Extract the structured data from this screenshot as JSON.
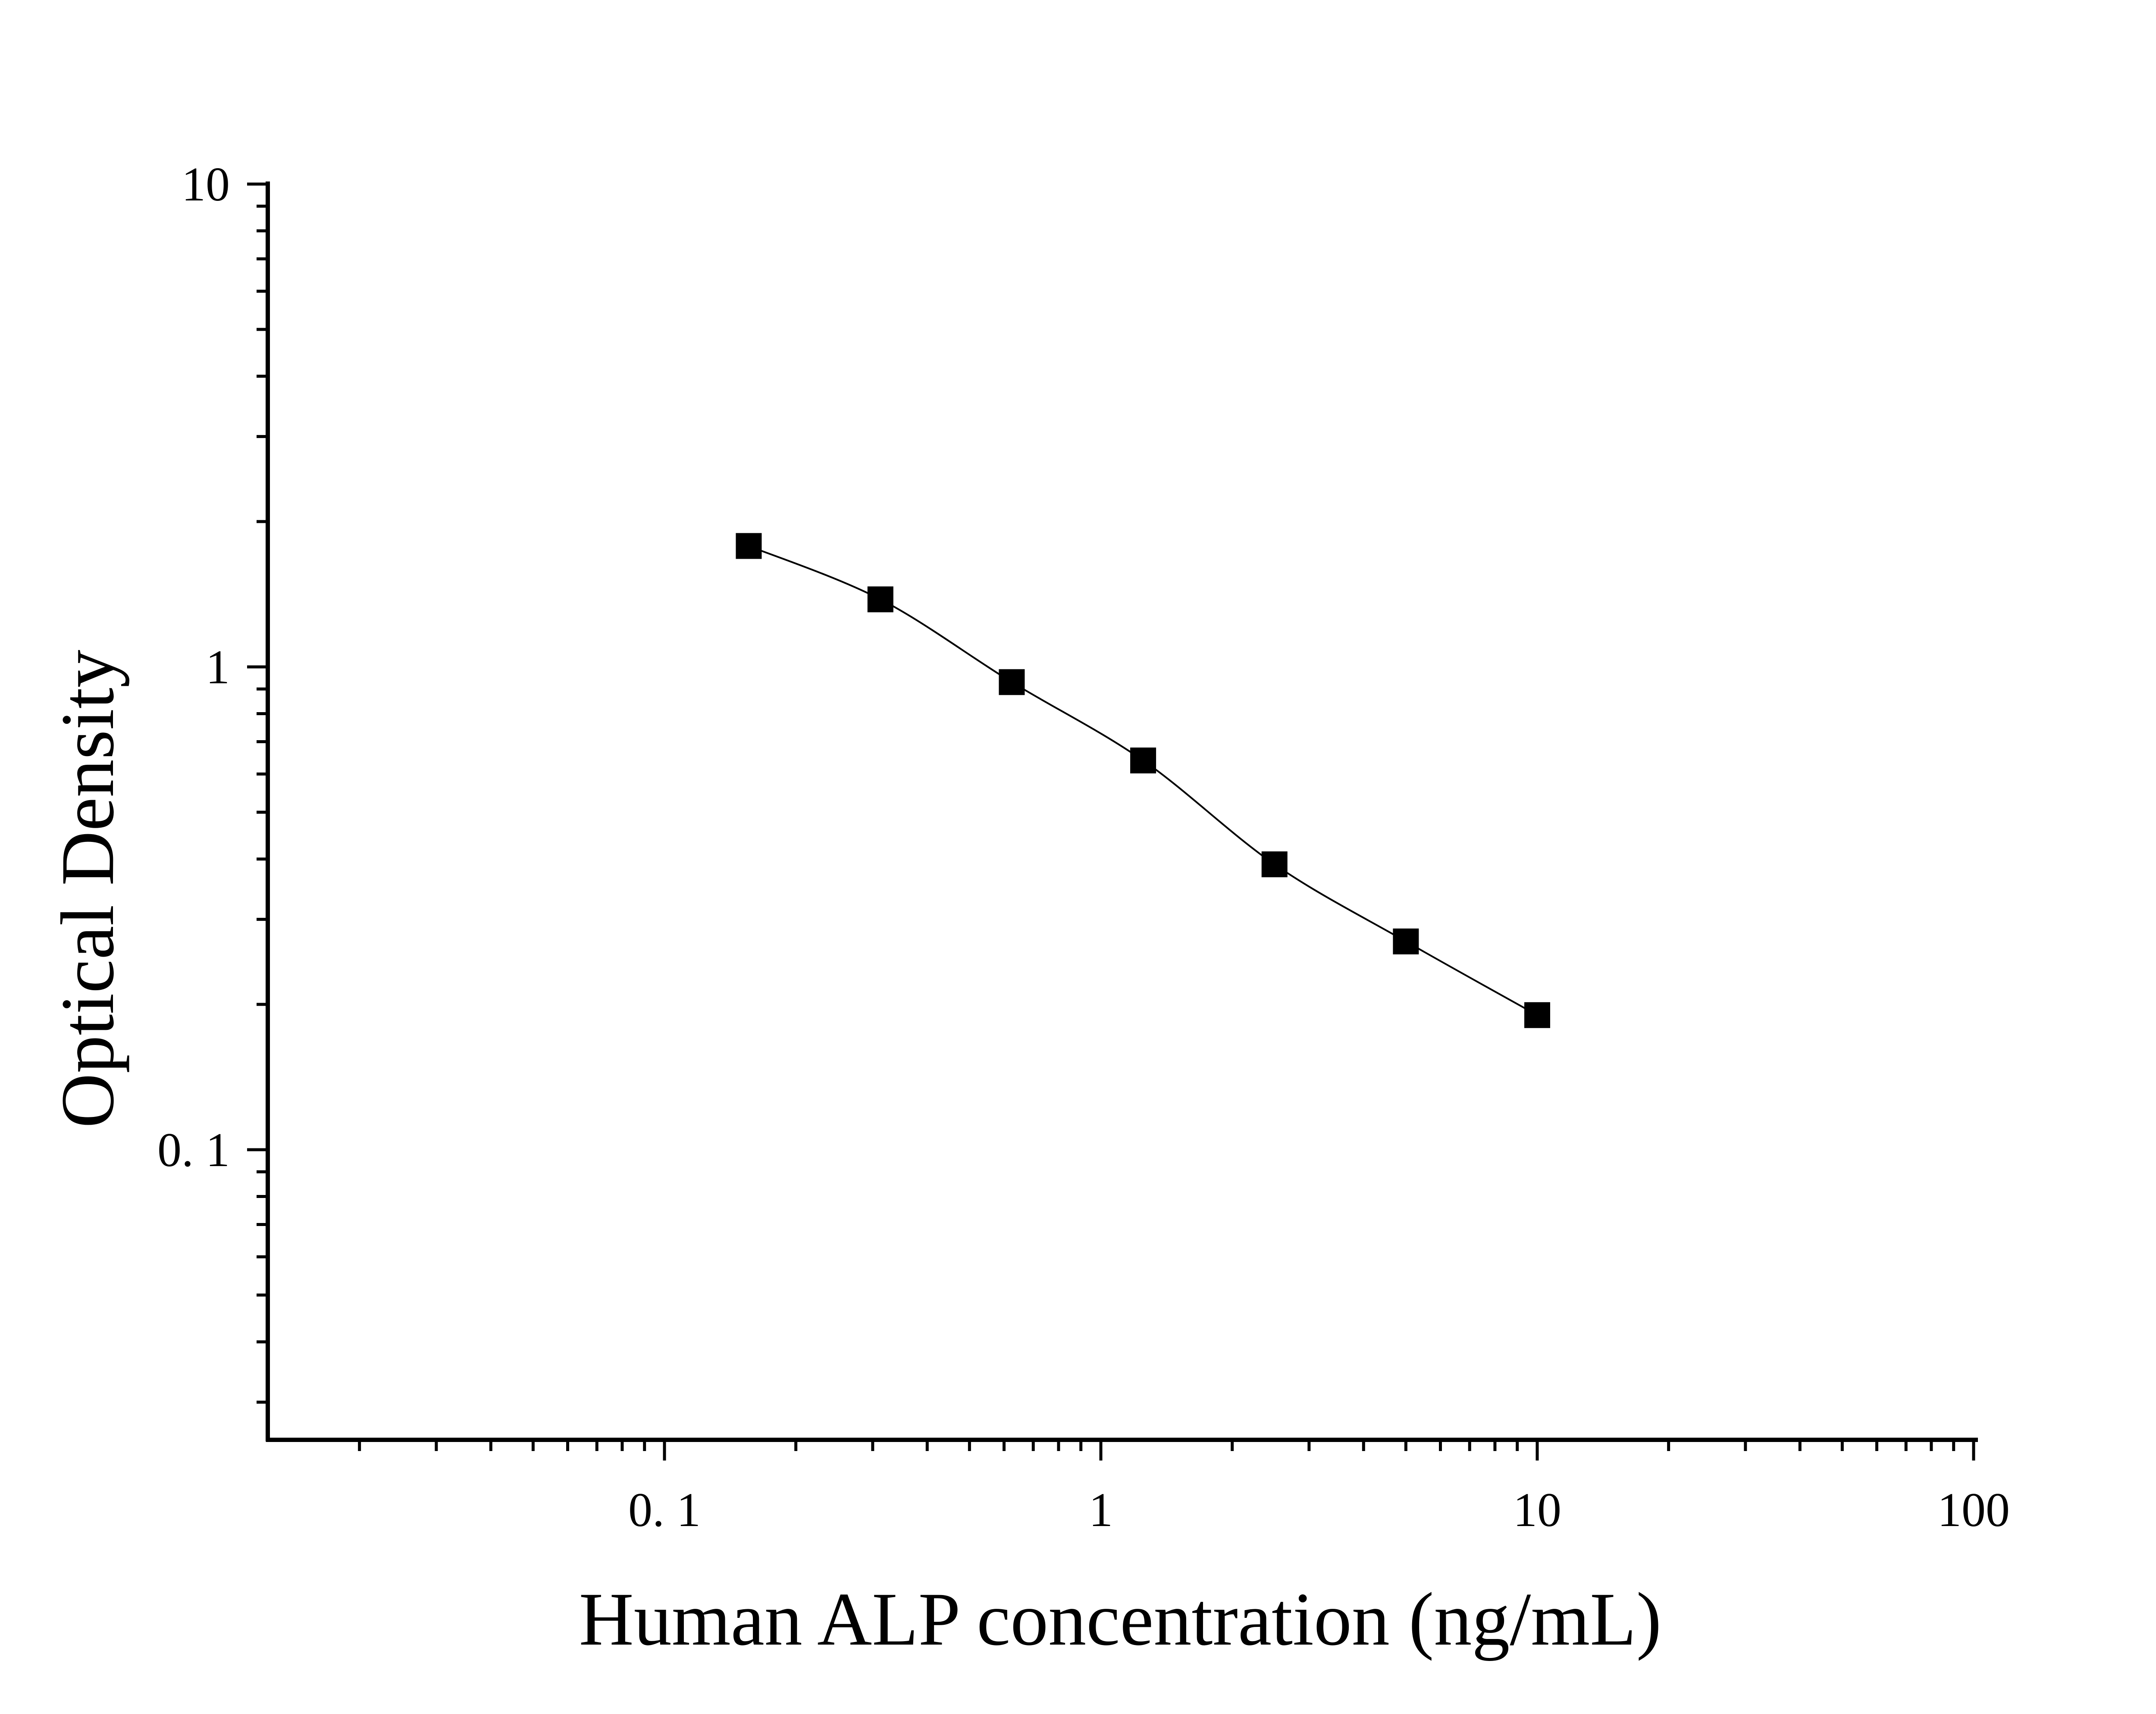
{
  "chart_data": {
    "type": "scatter",
    "xlabel": "Human ALP concentration (ng/mL)",
    "ylabel": "Optical Density",
    "xscale": "log",
    "yscale": "log",
    "xlim": [
      0.0125,
      100
    ],
    "ylim": [
      0.03,
      10
    ],
    "x_ticks": [
      {
        "value": 0.1,
        "label": "0. 1"
      },
      {
        "value": 1,
        "label": "1"
      },
      {
        "value": 10,
        "label": "10"
      },
      {
        "value": 100,
        "label": "100"
      }
    ],
    "y_ticks": [
      {
        "value": 0.1,
        "label": "0. 1"
      },
      {
        "value": 1,
        "label": "1"
      },
      {
        "value": 10,
        "label": "10"
      }
    ],
    "grid": false,
    "legend": "none",
    "marker": "square",
    "fit_curve": "smooth line through points",
    "color": "#000000",
    "series": [
      {
        "x": [
          0.156,
          0.3125,
          0.625,
          1.25,
          2.5,
          5,
          10
        ],
        "y": [
          1.78,
          1.38,
          0.93,
          0.64,
          0.39,
          0.27,
          0.19
        ]
      }
    ]
  }
}
